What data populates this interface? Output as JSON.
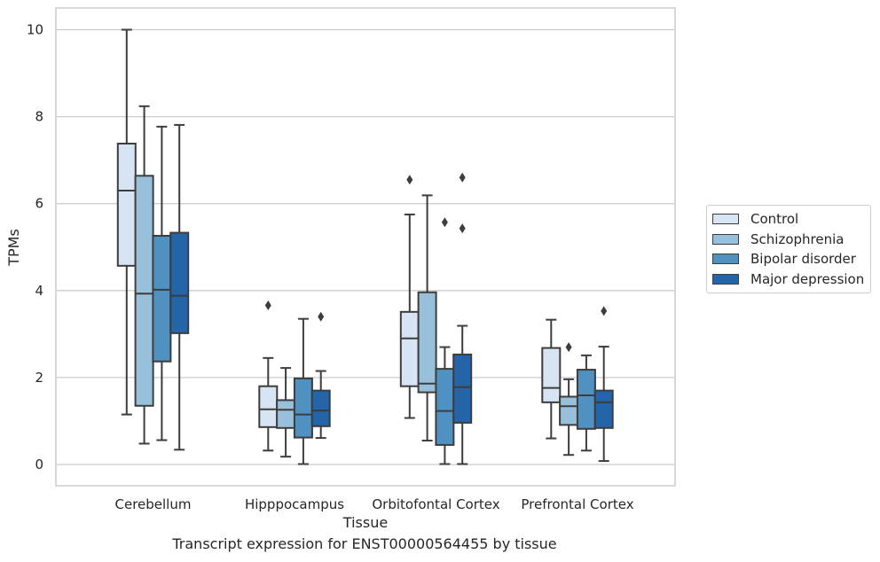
{
  "chart_data": {
    "type": "box",
    "title": "",
    "caption": "Transcript expression for ENST00000564455 by tissue",
    "xlabel": "Tissue",
    "ylabel": "TPMs",
    "ylim": [
      -0.48,
      10.5
    ],
    "yticks": [
      0,
      2,
      4,
      6,
      8,
      10
    ],
    "grid": "horizontal",
    "legend_position": "right",
    "categories": [
      "Cerebellum",
      "Hipppocampus",
      "Orbitofontal Cortex",
      "Prefrontal Cortex"
    ],
    "series": [
      {
        "name": "Control",
        "color": "#d6e4f3",
        "boxes": [
          {
            "whislo": 1.15,
            "q1": 4.57,
            "med": 6.3,
            "q3": 7.38,
            "whishi": 10.0,
            "fliers": []
          },
          {
            "whislo": 0.32,
            "q1": 0.86,
            "med": 1.27,
            "q3": 1.8,
            "whishi": 2.45,
            "fliers": [
              3.66
            ]
          },
          {
            "whislo": 1.07,
            "q1": 1.8,
            "med": 2.9,
            "q3": 3.51,
            "whishi": 5.75,
            "fliers": [
              6.55
            ]
          },
          {
            "whislo": 0.6,
            "q1": 1.43,
            "med": 1.76,
            "q3": 2.68,
            "whishi": 3.33,
            "fliers": []
          }
        ]
      },
      {
        "name": "Schizophrenia",
        "color": "#99c0db",
        "boxes": [
          {
            "whislo": 0.48,
            "q1": 1.35,
            "med": 3.93,
            "q3": 6.64,
            "whishi": 8.24,
            "fliers": []
          },
          {
            "whislo": 0.18,
            "q1": 0.84,
            "med": 1.26,
            "q3": 1.48,
            "whishi": 2.22,
            "fliers": []
          },
          {
            "whislo": 0.55,
            "q1": 1.66,
            "med": 1.86,
            "q3": 3.96,
            "whishi": 6.19,
            "fliers": []
          },
          {
            "whislo": 0.22,
            "q1": 0.91,
            "med": 1.34,
            "q3": 1.56,
            "whishi": 1.96,
            "fliers": [
              2.7
            ]
          }
        ]
      },
      {
        "name": "Bipolar disorder",
        "color": "#4f91c0",
        "boxes": [
          {
            "whislo": 0.56,
            "q1": 2.37,
            "med": 4.02,
            "q3": 5.26,
            "whishi": 7.77,
            "fliers": []
          },
          {
            "whislo": 0.01,
            "q1": 0.62,
            "med": 1.15,
            "q3": 1.98,
            "whishi": 3.35,
            "fliers": []
          },
          {
            "whislo": 0.01,
            "q1": 0.45,
            "med": 1.23,
            "q3": 2.2,
            "whishi": 2.7,
            "fliers": [
              5.57
            ]
          },
          {
            "whislo": 0.32,
            "q1": 0.82,
            "med": 1.59,
            "q3": 2.18,
            "whishi": 2.51,
            "fliers": []
          }
        ]
      },
      {
        "name": "Major depression",
        "color": "#2365a8",
        "boxes": [
          {
            "whislo": 0.34,
            "q1": 3.02,
            "med": 3.88,
            "q3": 5.33,
            "whishi": 7.81,
            "fliers": []
          },
          {
            "whislo": 0.61,
            "q1": 0.88,
            "med": 1.24,
            "q3": 1.7,
            "whishi": 2.15,
            "fliers": [
              3.4
            ]
          },
          {
            "whislo": 0.01,
            "q1": 0.96,
            "med": 1.78,
            "q3": 2.53,
            "whishi": 3.19,
            "fliers": [
              5.43,
              6.6
            ]
          },
          {
            "whislo": 0.08,
            "q1": 0.84,
            "med": 1.43,
            "q3": 1.7,
            "whishi": 2.71,
            "fliers": [
              3.53
            ]
          }
        ]
      }
    ]
  }
}
